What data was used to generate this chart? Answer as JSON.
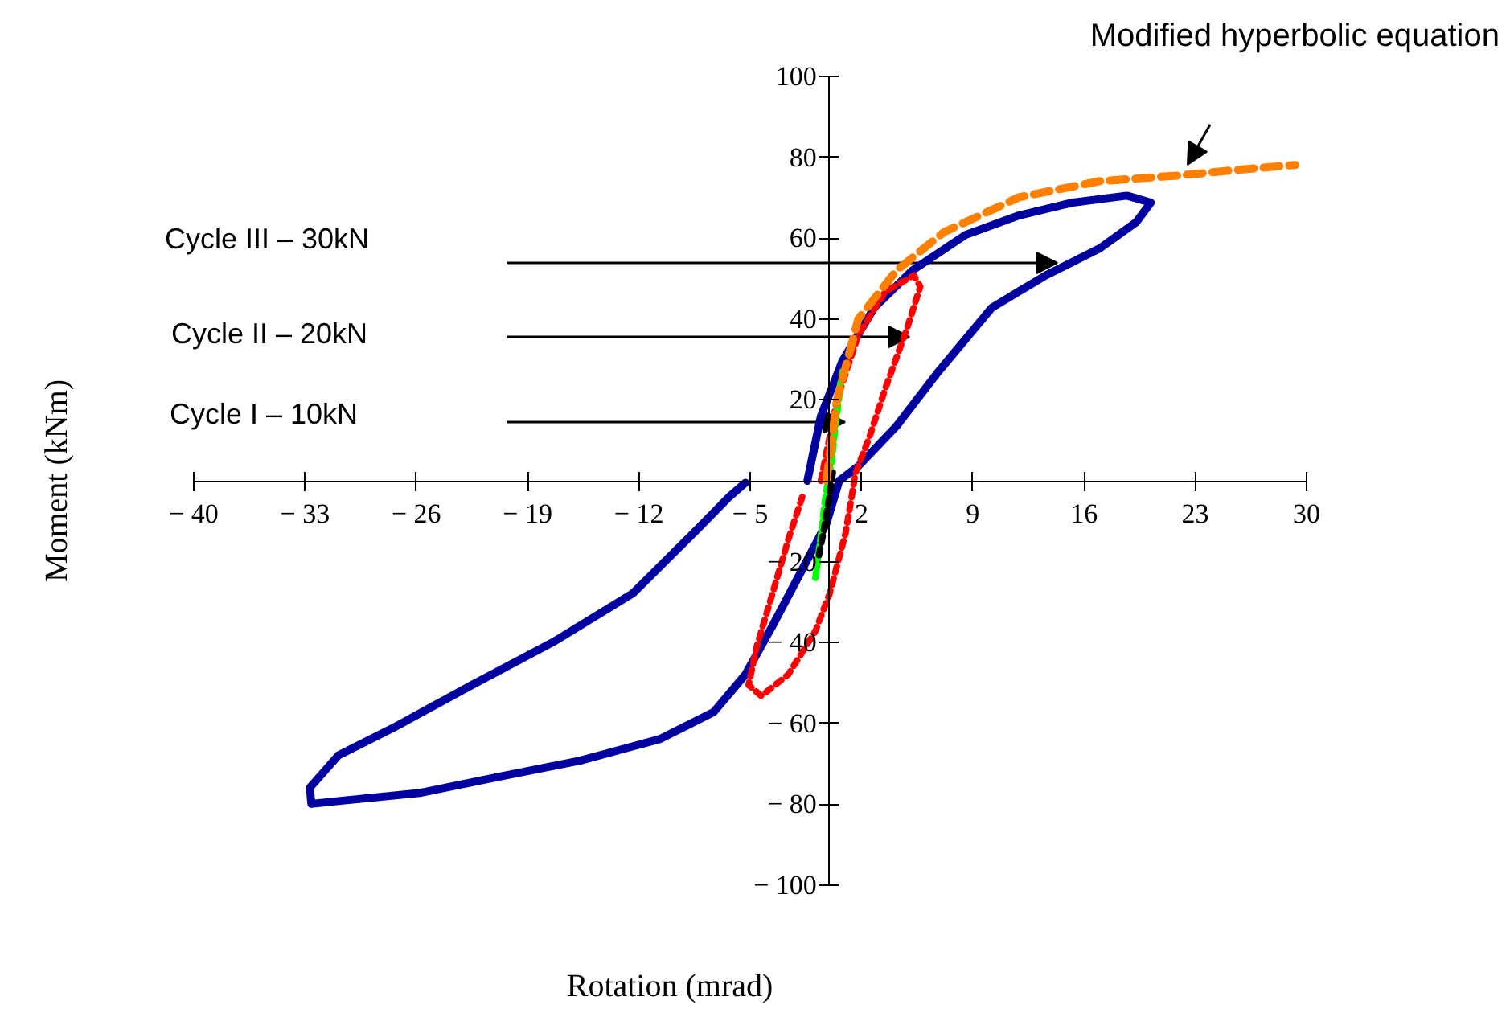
{
  "chart_data": {
    "type": "line",
    "xlabel": "Rotation (mrad)",
    "ylabel": "Moment (kNm)",
    "xlim": [
      -40,
      30
    ],
    "ylim": [
      -100,
      100
    ],
    "xticks": [
      {
        "value": -40,
        "label": "− 40"
      },
      {
        "value": -33,
        "label": "− 33"
      },
      {
        "value": -26,
        "label": "− 26"
      },
      {
        "value": -19,
        "label": "− 19"
      },
      {
        "value": -12,
        "label": "− 12"
      },
      {
        "value": -5,
        "label": "− 5"
      },
      2,
      9,
      16,
      23,
      30
    ],
    "yticks": [
      {
        "value": -100,
        "label": "− 100"
      },
      {
        "value": -80,
        "label": "− 80"
      },
      {
        "value": -60,
        "label": "− 60"
      },
      {
        "value": -40,
        "label": "− 40"
      },
      {
        "value": -20,
        "label": "− 20"
      },
      {
        "value": 0,
        "label": null
      },
      20,
      40,
      60,
      80,
      100
    ],
    "grid": false,
    "marker": "none",
    "series": [
      {
        "color": "#0000a0",
        "line_style": "solid",
        "x": [
          -1.4,
          -0.55,
          0.8,
          2.8,
          5.2,
          8.55,
          11.9,
          15.3,
          18.7,
          20.2,
          19.3,
          17,
          13.6,
          10.2,
          6.8,
          4.2,
          1.8,
          0.6,
          -0.2,
          -1.6,
          -3.6,
          -5.3,
          -7.3,
          -10.7,
          -15.7,
          -20.8,
          -25.8,
          -30.9,
          -32.6,
          -32.7,
          -30.9,
          -27.5,
          -22.5,
          -17.4,
          -12.4,
          -8.3,
          -6.3,
          -5.3
        ],
        "values": [
          0,
          16,
          29.6,
          42.8,
          52,
          60.8,
          65.6,
          68.8,
          70.5,
          68.8,
          64,
          57.5,
          50.8,
          42.8,
          26.8,
          13.5,
          3.6,
          0,
          -10.5,
          -21,
          -35.9,
          -47.9,
          -57.2,
          -63.9,
          -69.2,
          -73.2,
          -77.2,
          -79.2,
          -79.9,
          -75.9,
          -67.9,
          -61.2,
          -50.5,
          -39.9,
          -27.9,
          -11.9,
          -3.9,
          -0.5
        ]
      },
      {
        "color": "#ff0000",
        "line_style": "dotted",
        "x": [
          -0.55,
          0.46,
          1.8,
          3.5,
          5.3,
          5.7,
          4.85,
          3.5,
          2.5,
          1.6,
          1.5,
          1,
          0,
          -0.9,
          -2.6,
          -4.3,
          -5.1,
          -4.6,
          -3.6,
          -2.6,
          -1.6
        ],
        "values": [
          0,
          20,
          36,
          46.8,
          50.8,
          48,
          37.5,
          22.8,
          10.8,
          1.6,
          -1.2,
          -13,
          -27.9,
          -37.2,
          -47.9,
          -53.2,
          -50.5,
          -41.2,
          -27.9,
          -14.5,
          -2.5
        ]
      },
      {
        "color": "#00ff00",
        "line_style": "dotted",
        "x": [
          -0.9,
          -0.5,
          0,
          0.3,
          0.8,
          0.5,
          0.2,
          -0.3,
          -0.8
        ],
        "values": [
          -24,
          -12,
          0,
          11,
          27,
          20,
          8,
          -5,
          -22
        ]
      },
      {
        "color": "#000000",
        "line_style": "dotted",
        "x": [
          0.2,
          -0.1,
          -0.4,
          -0.7
        ],
        "values": [
          2,
          -6,
          -13,
          -19
        ]
      },
      {
        "color": "#ff8000",
        "line_style": "dashed",
        "x": [
          -0.2,
          0.46,
          1.8,
          4.2,
          7.2,
          11.9,
          17,
          22,
          25.4,
          29.3
        ],
        "values": [
          0,
          20,
          40,
          52,
          61.5,
          70.1,
          74.1,
          75.5,
          76.8,
          78.1
        ]
      }
    ],
    "annotations": [
      "Cycle III – 30kN",
      "Cycle II – 20kN",
      "Cycle I – 10kN",
      "Modified hyperbolic equation"
    ]
  }
}
